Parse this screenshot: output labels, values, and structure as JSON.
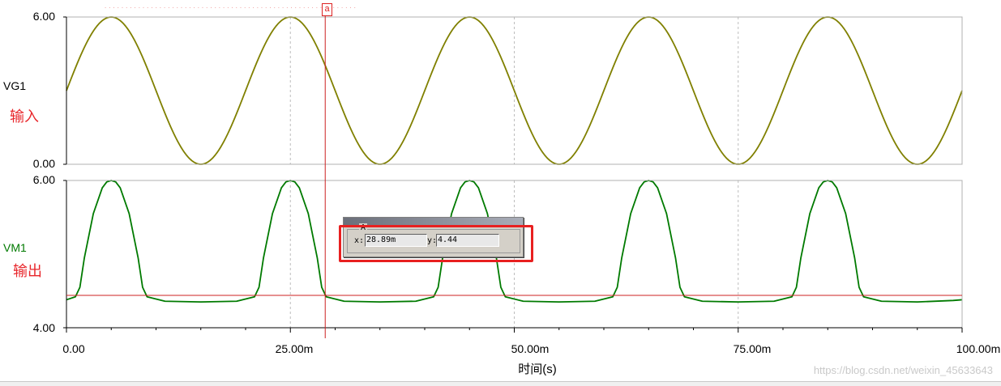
{
  "chart_data": [
    {
      "type": "line",
      "trace": "VG1",
      "annotation": "输入",
      "color": "#808000",
      "ylim": [
        0.0,
        6.0
      ],
      "yticks": [
        "6.00",
        "0.00"
      ],
      "x_unit": "s",
      "series": [
        {
          "name": "VG1",
          "x": [
            0,
            0.0025,
            0.005,
            0.0075,
            0.01,
            0.0125,
            0.015,
            0.0175,
            0.02,
            0.0225,
            0.025,
            0.0275,
            0.03,
            0.0325,
            0.035,
            0.0375,
            0.04,
            0.0425,
            0.045,
            0.0475,
            0.05,
            0.0525,
            0.055,
            0.0575,
            0.06,
            0.0625,
            0.065,
            0.0675,
            0.07,
            0.0725,
            0.075,
            0.0775,
            0.08,
            0.0825,
            0.085,
            0.0875,
            0.09,
            0.0925,
            0.095,
            0.0975,
            0.1
          ],
          "values": [
            3.0,
            5.12,
            6.0,
            5.12,
            3.0,
            0.88,
            0.0,
            0.88,
            3.0,
            5.12,
            6.0,
            5.12,
            3.0,
            0.88,
            0.0,
            0.88,
            3.0,
            5.12,
            6.0,
            5.12,
            3.0,
            0.88,
            0.0,
            0.88,
            3.0,
            5.12,
            6.0,
            5.12,
            3.0,
            0.88,
            0.0,
            0.88,
            3.0,
            5.12,
            6.0,
            5.12,
            3.0,
            0.88,
            0.0,
            0.88,
            3.0
          ]
        }
      ]
    },
    {
      "type": "line",
      "trace": "VM1",
      "annotation": "输出",
      "color": "#007a00",
      "ylim": [
        4.0,
        6.0
      ],
      "yticks": [
        "6.00",
        "4.00"
      ],
      "x_unit": "s",
      "series": [
        {
          "name": "VM1",
          "x": [
            0,
            0.001,
            0.0015,
            0.002,
            0.003,
            0.004,
            0.0045,
            0.005,
            0.0055,
            0.006,
            0.007,
            0.008,
            0.0085,
            0.009,
            0.011,
            0.015,
            0.019,
            0.021,
            0.0215,
            0.022,
            0.023,
            0.024,
            0.0245,
            0.025,
            0.0255,
            0.026,
            0.027,
            0.028,
            0.0285,
            0.029,
            0.031,
            0.035,
            0.039,
            0.041,
            0.0415,
            0.042,
            0.043,
            0.044,
            0.0445,
            0.045,
            0.0455,
            0.046,
            0.047,
            0.048,
            0.0485,
            0.049,
            0.051,
            0.055,
            0.059,
            0.061,
            0.0615,
            0.062,
            0.063,
            0.064,
            0.0645,
            0.065,
            0.0655,
            0.066,
            0.067,
            0.068,
            0.0685,
            0.069,
            0.071,
            0.075,
            0.079,
            0.081,
            0.0815,
            0.082,
            0.083,
            0.084,
            0.0845,
            0.085,
            0.0855,
            0.086,
            0.087,
            0.088,
            0.0885,
            0.089,
            0.091,
            0.095,
            0.099,
            0.1
          ],
          "values": [
            4.38,
            4.42,
            4.55,
            4.95,
            5.55,
            5.9,
            5.98,
            6.0,
            5.98,
            5.9,
            5.55,
            4.95,
            4.55,
            4.42,
            4.36,
            4.35,
            4.36,
            4.42,
            4.55,
            4.95,
            5.55,
            5.9,
            5.98,
            6.0,
            5.98,
            5.9,
            5.55,
            4.95,
            4.55,
            4.42,
            4.36,
            4.35,
            4.36,
            4.42,
            4.55,
            4.95,
            5.55,
            5.9,
            5.98,
            6.0,
            5.98,
            5.9,
            5.55,
            4.95,
            4.55,
            4.42,
            4.36,
            4.35,
            4.36,
            4.42,
            4.55,
            4.95,
            5.55,
            5.9,
            5.98,
            6.0,
            5.98,
            5.9,
            5.55,
            4.95,
            4.55,
            4.42,
            4.36,
            4.35,
            4.36,
            4.42,
            4.55,
            4.95,
            5.55,
            5.9,
            5.98,
            6.0,
            5.98,
            5.9,
            5.55,
            4.95,
            4.55,
            4.42,
            4.36,
            4.35,
            4.37,
            4.38
          ]
        }
      ]
    }
  ],
  "x_axis": {
    "xlim": [
      0,
      0.1
    ],
    "tick_values": [
      0,
      0.025,
      0.05,
      0.075,
      0.1
    ],
    "tick_labels": [
      "0.00",
      "25.00m",
      "50.00m",
      "75.00m",
      "100.00m"
    ],
    "xlabel": "时间(s)"
  },
  "cursor": {
    "tag": "a",
    "x": 0.02889,
    "y_level_vm1": 4.44,
    "color": "#cc2222",
    "readout": {
      "group_label": "A",
      "x_label": "x:",
      "x_value": "28.89m",
      "y_label": "y:",
      "y_value": "4.44"
    }
  },
  "highlight_color": "#e82020",
  "watermark": "https://blog.csdn.net/weixin_45633643"
}
